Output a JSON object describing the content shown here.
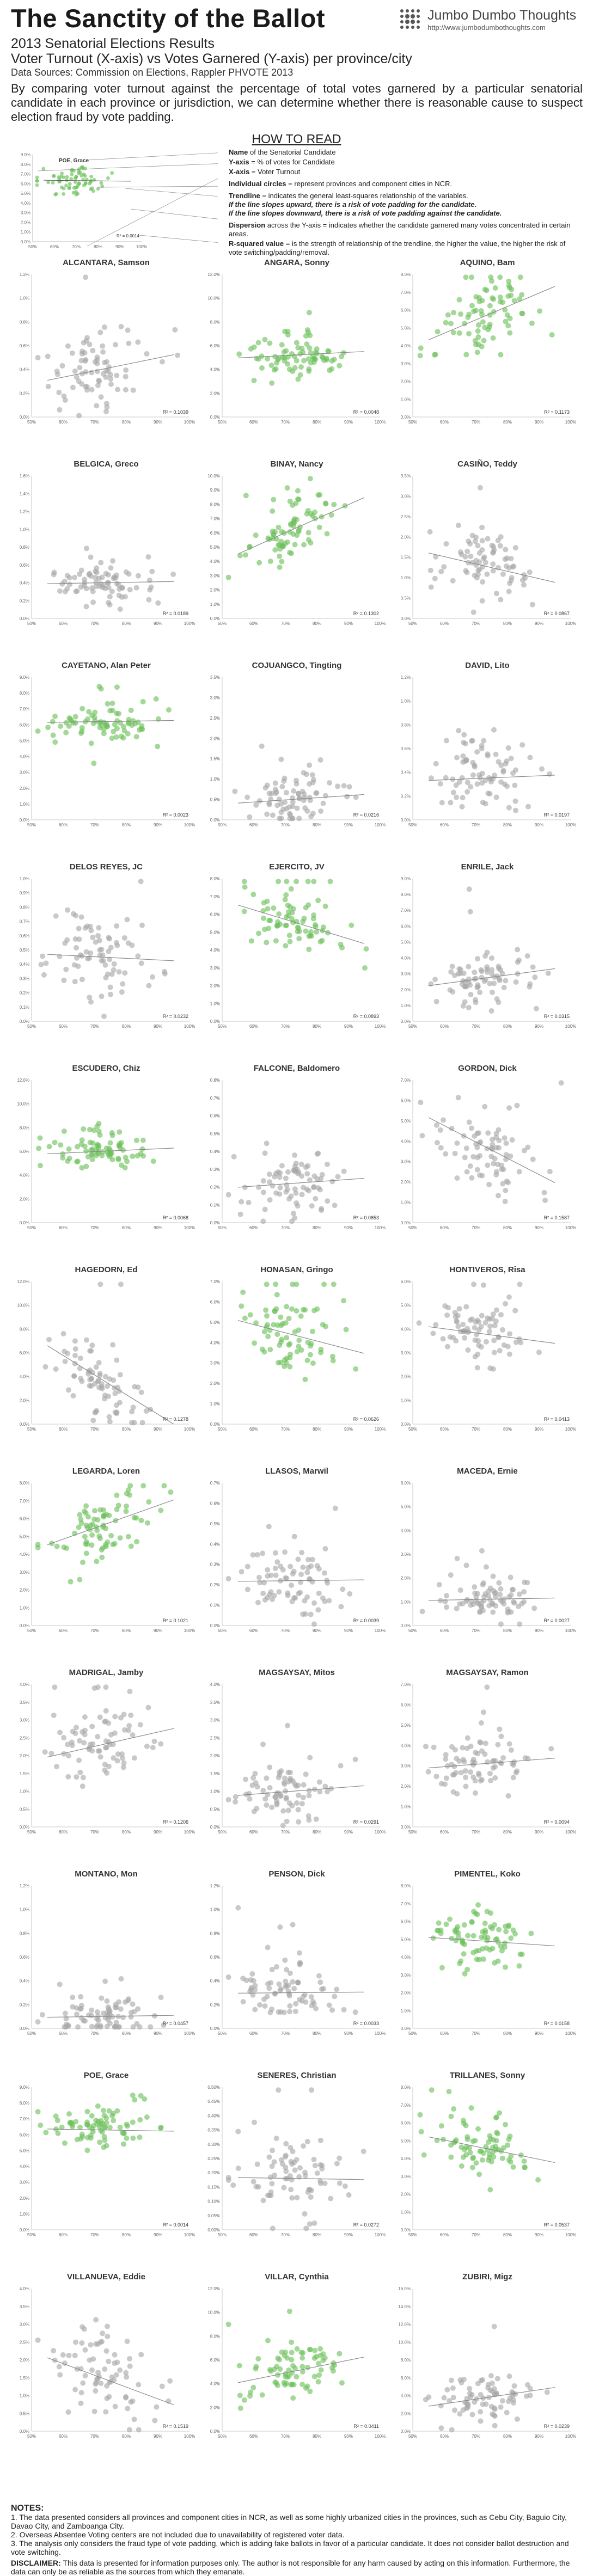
{
  "header": {
    "title": "The Sanctity of the Ballot",
    "subtitle1": "2013 Senatorial Elections Results",
    "subtitle2": "Voter Turnout (X-axis) vs Votes Garnered (Y-axis) per province/city",
    "sources": "Data Sources: Commission on Elections, Rappler PHVOTE 2013",
    "intro": "By comparing voter turnout against the percentage of total votes garnered by a particular senatorial candidate in each province or jurisdiction, we can determine whether there is reasonable cause to suspect election fraud by vote padding."
  },
  "brand": {
    "name": "Jumbo Dumbo Thoughts",
    "url": "http://www.jumbodumbothoughts.com"
  },
  "howto": {
    "title": "HOW TO READ",
    "example_name": "POE, Grace",
    "example_r2": "R² = 0.0014",
    "y_ticks": [
      "9.0%",
      "8.0%",
      "7.0%",
      "6.0%",
      "5.0%",
      "4.0%",
      "3.0%",
      "2.0%",
      "1.0%",
      "0.0%"
    ],
    "x_ticks": [
      "50%",
      "60%",
      "70%",
      "80%",
      "90%",
      "100%"
    ],
    "items": [
      {
        "term": "Name",
        "desc": " of the Senatorial Candidate"
      },
      {
        "term": "Y-axis",
        "desc": " = % of votes for Candidate"
      },
      {
        "term": "X-axis",
        "desc": " = Voter Turnout"
      },
      {
        "term": "Individual circles",
        "desc": " = represent provinces and component cities in NCR."
      },
      {
        "term": "Trendline",
        "desc": " = indicates the general least-squares relationship of the variables."
      },
      {
        "term": "",
        "desc": "If the line slopes upward, there is a risk of vote padding for the candidate."
      },
      {
        "term": "",
        "desc": "If the line slopes downward, there is a risk of vote padding against the candidate."
      },
      {
        "term": "Dispersion",
        "desc": " across the Y-axis = indicates whether the candidate garnered many votes concentrated in certain areas."
      },
      {
        "term": "R-squared value",
        "desc": " = is the strength of relationship of the trendline, the higher the value, the higher the risk of vote switching/padding/removal."
      }
    ]
  },
  "colors": {
    "green": "#6cc05a",
    "gray": "#a8a8a8",
    "trend": "#8a8a8a"
  },
  "chart_data": [
    {
      "type": "scatter",
      "name": "ALCANTARA, Samson",
      "ymax": 1.2,
      "yticks": [
        0.0,
        0.2,
        0.4,
        0.6,
        0.8,
        1.0,
        1.2
      ],
      "ydec": 1,
      "r2": "R² = 0.1039",
      "green": false,
      "center": 0.4,
      "spread": 0.18,
      "slope": 0.6,
      "seed": 1
    },
    {
      "type": "scatter",
      "name": "ANGARA, Sonny",
      "ymax": 12,
      "yticks": [
        0,
        2,
        4,
        6,
        8,
        10,
        12
      ],
      "ydec": 1,
      "r2": "R² = 0.0048",
      "green": true,
      "center": 5.2,
      "spread": 0.9,
      "slope": 0.3,
      "seed": 2
    },
    {
      "type": "scatter",
      "name": "AQUINO, Bam",
      "ymax": 8,
      "yticks": [
        0,
        1,
        2,
        3,
        4,
        5,
        6,
        7,
        8
      ],
      "ydec": 1,
      "r2": "R² = 0.1173",
      "green": true,
      "center": 5.6,
      "spread": 1.0,
      "slope": 1.5,
      "seed": 3
    },
    {
      "type": "scatter",
      "name": "BELGICA, Greco",
      "ymax": 1.6,
      "yticks": [
        0.0,
        0.2,
        0.4,
        0.6,
        0.8,
        1.0,
        1.2,
        1.4,
        1.6
      ],
      "ydec": 1,
      "r2": "R² = 0.0189",
      "green": false,
      "center": 0.4,
      "spread": 0.12,
      "slope": 0.1,
      "seed": 4
    },
    {
      "type": "scatter",
      "name": "BINAY, Nancy",
      "ymax": 10,
      "yticks": [
        0,
        1,
        2,
        3,
        4,
        5,
        6,
        7,
        8,
        9,
        10
      ],
      "ydec": 1,
      "r2": "R² = 0.1302",
      "green": true,
      "center": 6.2,
      "spread": 1.1,
      "slope": 1.8,
      "seed": 5
    },
    {
      "type": "scatter",
      "name": "CASIÑO, Teddy",
      "ymax": 3.5,
      "yticks": [
        0.0,
        0.5,
        1.0,
        1.5,
        2.0,
        2.5,
        3.0,
        3.5
      ],
      "ydec": 1,
      "r2": "R² = 0.0867",
      "green": false,
      "center": 1.3,
      "spread": 0.45,
      "slope": -0.8,
      "seed": 6
    },
    {
      "type": "scatter",
      "name": "CAYETANO, Alan Peter",
      "ymax": 9,
      "yticks": [
        0,
        1,
        2,
        3,
        4,
        5,
        6,
        7,
        8,
        9
      ],
      "ydec": 1,
      "r2": "R² = 0.0023",
      "green": true,
      "center": 6.2,
      "spread": 0.6,
      "slope": 0.1,
      "seed": 7
    },
    {
      "type": "scatter",
      "name": "COJUANGCO, Tingting",
      "ymax": 3.5,
      "yticks": [
        0.0,
        0.5,
        1.0,
        1.5,
        2.0,
        2.5,
        3.0,
        3.5
      ],
      "ydec": 1,
      "r2": "R² = 0.0216",
      "green": false,
      "center": 0.5,
      "spread": 0.35,
      "slope": 0.3,
      "seed": 8
    },
    {
      "type": "scatter",
      "name": "DAVID, Lito",
      "ymax": 1.2,
      "yticks": [
        0.0,
        0.2,
        0.4,
        0.6,
        0.8,
        1.0,
        1.2
      ],
      "ydec": 1,
      "r2": "R² = 0.0197",
      "green": false,
      "center": 0.35,
      "spread": 0.15,
      "slope": 0.15,
      "seed": 9
    },
    {
      "type": "scatter",
      "name": "DELOS REYES, JC",
      "ymax": 1.0,
      "yticks": [
        0.0,
        0.1,
        0.2,
        0.3,
        0.4,
        0.5,
        0.6,
        0.7,
        0.8,
        0.9,
        1.0
      ],
      "ydec": 1,
      "r2": "R² = 0.0232",
      "green": false,
      "center": 0.45,
      "spread": 0.15,
      "slope": -0.15,
      "seed": 10
    },
    {
      "type": "scatter",
      "name": "EJERCITO, JV",
      "ymax": 8,
      "yticks": [
        0,
        1,
        2,
        3,
        4,
        5,
        6,
        7,
        8
      ],
      "ydec": 1,
      "r2": "R² = 0.0893",
      "green": true,
      "center": 5.6,
      "spread": 0.9,
      "slope": -1.2,
      "seed": 11
    },
    {
      "type": "scatter",
      "name": "ENRILE, Jack",
      "ymax": 9,
      "yticks": [
        0,
        1,
        2,
        3,
        4,
        5,
        6,
        7,
        8,
        9
      ],
      "ydec": 1,
      "r2": "R² = 0.0315",
      "green": false,
      "center": 2.7,
      "spread": 0.9,
      "slope": 0.6,
      "seed": 12
    },
    {
      "type": "scatter",
      "name": "ESCUDERO, Chiz",
      "ymax": 12,
      "yticks": [
        0,
        2,
        4,
        6,
        8,
        10,
        12
      ],
      "ydec": 1,
      "r2": "R² = 0.0068",
      "green": true,
      "center": 6.0,
      "spread": 0.8,
      "slope": 0.3,
      "seed": 13
    },
    {
      "type": "scatter",
      "name": "FALCONE, Baldomero",
      "ymax": 0.8,
      "yticks": [
        0.0,
        0.1,
        0.2,
        0.3,
        0.4,
        0.5,
        0.6,
        0.7,
        0.8
      ],
      "ydec": 1,
      "r2": "R² = 0.0853",
      "green": false,
      "center": 0.22,
      "spread": 0.1,
      "slope": 0.25,
      "seed": 14
    },
    {
      "type": "scatter",
      "name": "GORDON, Dick",
      "ymax": 7,
      "yticks": [
        0,
        1,
        2,
        3,
        4,
        5,
        6,
        7
      ],
      "ydec": 1,
      "r2": "R² = 0.1587",
      "green": false,
      "center": 3.8,
      "spread": 1.0,
      "slope": -1.6,
      "seed": 15
    },
    {
      "type": "scatter",
      "name": "HAGEDORN, Ed",
      "ymax": 12,
      "yticks": [
        0,
        2,
        4,
        6,
        8,
        10,
        12
      ],
      "ydec": 1,
      "r2": "R² = 0.1278",
      "green": false,
      "center": 3.2,
      "spread": 1.6,
      "slope": -2.5,
      "seed": 16
    },
    {
      "type": "scatter",
      "name": "HONASAN, Gringo",
      "ymax": 7,
      "yticks": [
        0,
        1,
        2,
        3,
        4,
        5,
        6,
        7
      ],
      "ydec": 1,
      "r2": "R² = 0.0626",
      "green": true,
      "center": 4.4,
      "spread": 0.9,
      "slope": -0.9,
      "seed": 17
    },
    {
      "type": "scatter",
      "name": "HONTIVEROS, Risa",
      "ymax": 6,
      "yticks": [
        0,
        1,
        2,
        3,
        4,
        5,
        6
      ],
      "ydec": 1,
      "r2": "R² = 0.0413",
      "green": false,
      "center": 3.8,
      "spread": 0.7,
      "slope": -0.5,
      "seed": 18
    },
    {
      "type": "scatter",
      "name": "LEGARDA, Loren",
      "ymax": 8,
      "yticks": [
        0,
        1,
        2,
        3,
        4,
        5,
        6,
        7,
        8
      ],
      "ydec": 1,
      "r2": "R² = 0.1021",
      "green": true,
      "center": 5.6,
      "spread": 0.9,
      "slope": 1.4,
      "seed": 19
    },
    {
      "type": "scatter",
      "name": "LLASOS, Marwil",
      "ymax": 0.7,
      "yticks": [
        0.0,
        0.1,
        0.2,
        0.3,
        0.4,
        0.5,
        0.6,
        0.7
      ],
      "ydec": 1,
      "r2": "R² = 0.0039",
      "green": false,
      "center": 0.22,
      "spread": 0.09,
      "slope": 0.04,
      "seed": 20
    },
    {
      "type": "scatter",
      "name": "MACEDA, Ernie",
      "ymax": 6,
      "yticks": [
        0,
        1,
        2,
        3,
        4,
        5,
        6
      ],
      "ydec": 1,
      "r2": "R² = 0.0027",
      "green": false,
      "center": 1.1,
      "spread": 0.5,
      "slope": 0.1,
      "seed": 21
    },
    {
      "type": "scatter",
      "name": "MADRIGAL, Jamby",
      "ymax": 4,
      "yticks": [
        0.0,
        0.5,
        1.0,
        1.5,
        2.0,
        2.5,
        3.0,
        3.5,
        4.0
      ],
      "ydec": 1,
      "r2": "R² = 0.1206",
      "green": false,
      "center": 2.3,
      "spread": 0.5,
      "slope": 0.8,
      "seed": 22
    },
    {
      "type": "scatter",
      "name": "MAGSAYSAY, Mitos",
      "ymax": 4,
      "yticks": [
        0.0,
        0.5,
        1.0,
        1.5,
        2.0,
        2.5,
        3.0,
        3.5,
        4.0
      ],
      "ydec": 1,
      "r2": "R² = 0.0291",
      "green": false,
      "center": 1.0,
      "spread": 0.45,
      "slope": 0.3,
      "seed": 23
    },
    {
      "type": "scatter",
      "name": "MAGSAYSAY, Ramon",
      "ymax": 7,
      "yticks": [
        0,
        1,
        2,
        3,
        4,
        5,
        6,
        7
      ],
      "ydec": 1,
      "r2": "R² = 0.0094",
      "green": false,
      "center": 3.1,
      "spread": 0.8,
      "slope": 0.3,
      "seed": 24
    },
    {
      "type": "scatter",
      "name": "MONTANO, Mon",
      "ymax": 1.2,
      "yticks": [
        0.0,
        0.2,
        0.4,
        0.6,
        0.8,
        1.0,
        1.2
      ],
      "ydec": 1,
      "r2": "R² = 0.0457",
      "green": false,
      "center": 0.1,
      "spread": 0.08,
      "slope": 0.1,
      "seed": 25
    },
    {
      "type": "scatter",
      "name": "PENSON, Dick",
      "ymax": 1.2,
      "yticks": [
        0.0,
        0.2,
        0.4,
        0.6,
        0.8,
        1.0,
        1.2
      ],
      "ydec": 1,
      "r2": "R² = 0.0033",
      "green": false,
      "center": 0.3,
      "spread": 0.12,
      "slope": 0.04,
      "seed": 26
    },
    {
      "type": "scatter",
      "name": "PIMENTEL, Koko",
      "ymax": 8,
      "yticks": [
        0,
        1,
        2,
        3,
        4,
        5,
        6,
        7,
        8
      ],
      "ydec": 1,
      "r2": "R² = 0.0158",
      "green": true,
      "center": 4.9,
      "spread": 0.8,
      "slope": -0.3,
      "seed": 27
    },
    {
      "type": "scatter",
      "name": "POE, Grace",
      "ymax": 9,
      "yticks": [
        0,
        1,
        2,
        3,
        4,
        5,
        6,
        7,
        8,
        9
      ],
      "ydec": 1,
      "r2": "R² = 0.0014",
      "green": true,
      "center": 6.3,
      "spread": 0.7,
      "slope": -0.1,
      "seed": 28
    },
    {
      "type": "scatter",
      "name": "SENERES, Christian",
      "ymax": 0.5,
      "yticks": [
        0.0,
        0.05,
        0.1,
        0.15,
        0.2,
        0.25,
        0.3,
        0.35,
        0.4,
        0.45,
        0.5
      ],
      "ydec": 2,
      "r2": "R² = 0.0272",
      "green": false,
      "center": 0.18,
      "spread": 0.07,
      "slope": -0.05,
      "seed": 29
    },
    {
      "type": "scatter",
      "name": "TRILLANES, Sonny",
      "ymax": 8,
      "yticks": [
        0,
        1,
        2,
        3,
        4,
        5,
        6,
        7,
        8
      ],
      "ydec": 1,
      "r2": "R² = 0.0537",
      "green": true,
      "center": 4.6,
      "spread": 0.9,
      "slope": -0.8,
      "seed": 30
    },
    {
      "type": "scatter",
      "name": "VILLANUEVA, Eddie",
      "ymax": 4,
      "yticks": [
        0.0,
        0.5,
        1.0,
        1.5,
        2.0,
        2.5,
        3.0,
        3.5,
        4.0
      ],
      "ydec": 1,
      "r2": "R² = 0.1519",
      "green": false,
      "center": 1.5,
      "spread": 0.6,
      "slope": -1.1,
      "seed": 31
    },
    {
      "type": "scatter",
      "name": "VILLAR, Cynthia",
      "ymax": 12,
      "yticks": [
        0,
        2,
        4,
        6,
        8,
        10,
        12
      ],
      "ydec": 1,
      "r2": "R² = 0.0411",
      "green": true,
      "center": 5.0,
      "spread": 1.2,
      "slope": 0.9,
      "seed": 32
    },
    {
      "type": "scatter",
      "name": "ZUBIRI, Migz",
      "ymax": 16,
      "yticks": [
        0,
        2,
        4,
        6,
        8,
        10,
        12,
        14,
        16
      ],
      "ydec": 1,
      "r2": "R² = 0.0239",
      "green": false,
      "center": 3.7,
      "spread": 1.5,
      "slope": 0.7,
      "seed": 33
    }
  ],
  "chart_axes": {
    "x_ticks": [
      "50%",
      "60%",
      "70%",
      "80%",
      "90%",
      "100%"
    ],
    "xlim": [
      50,
      100
    ],
    "x_label": "Voter Turnout",
    "y_label": "% of votes for Candidate"
  },
  "notes": {
    "title": "NOTES:",
    "items": [
      "1. The data presented considers all provinces and component cities in NCR, as well as some highly urbanized cities in the provinces, such as Cebu City, Baguio City, Davao City, and Zamboanga City.",
      "2. Overseas Absentee Voting centers are not included due to unavailability of registered voter data.",
      "3. The analysis only considers the fraud type of vote padding, which is adding fake ballots in favor of a particular candidate. It does not consider ballot destruction and vote switching."
    ],
    "disclaimer_label": "DISCLAIMER:",
    "disclaimer": " This data is presented for information purposes only. The author is not responsible for any harm caused by acting on this information. Furthermore, the data can only be as reliable as the sources from which they emanate."
  }
}
